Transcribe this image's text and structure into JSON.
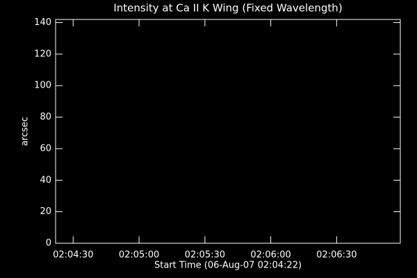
{
  "chart_data": {
    "type": "line",
    "title": "Intensity at Ca II K Wing (Fixed Wavelength)",
    "x_label": "Start Time (06-Aug-07 02:04:22)",
    "y_label": "arcsec",
    "xlim": [
      0,
      157
    ],
    "xticks": [
      {
        "value": 8,
        "label": "02:04:30"
      },
      {
        "value": 38,
        "label": "02:05:00"
      },
      {
        "value": 68,
        "label": "02:05:30"
      },
      {
        "value": 98,
        "label": "02:06:00"
      },
      {
        "value": 128,
        "label": "02:06:30"
      }
    ],
    "ylim": [
      0,
      142
    ],
    "yticks": [
      0,
      20,
      40,
      60,
      80,
      100,
      120,
      140
    ],
    "grid": false,
    "color": "#ffffff"
  }
}
